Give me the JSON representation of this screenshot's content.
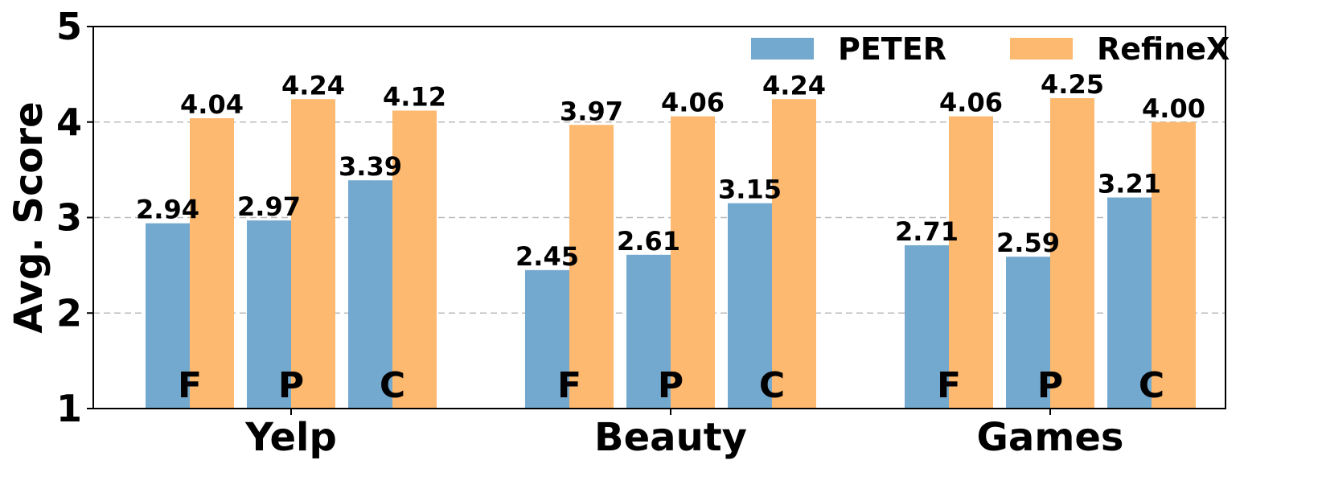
{
  "chart_data": {
    "type": "bar",
    "ylabel": "Avg. Score",
    "ylim": [
      1,
      5
    ],
    "yticks": [
      "1",
      "2",
      "3",
      "4",
      "5"
    ],
    "grid": true,
    "legend_position": "top-right",
    "groups": [
      {
        "name": "Yelp",
        "categories": [
          "F",
          "P",
          "C"
        ]
      },
      {
        "name": "Beauty",
        "categories": [
          "F",
          "P",
          "C"
        ]
      },
      {
        "name": "Games",
        "categories": [
          "F",
          "P",
          "C"
        ]
      }
    ],
    "series": [
      {
        "name": "PETER",
        "color": "#74a9cf",
        "values": [
          2.94,
          2.97,
          3.39,
          2.45,
          2.61,
          3.15,
          2.71,
          2.59,
          3.21
        ],
        "labels": [
          "2.94",
          "2.97",
          "3.39",
          "2.45",
          "2.61",
          "3.15",
          "2.71",
          "2.59",
          "3.21"
        ]
      },
      {
        "name": "RefineX",
        "color": "#fdb96f",
        "values": [
          4.04,
          4.24,
          4.12,
          3.97,
          4.06,
          4.24,
          4.06,
          4.25,
          4.0
        ],
        "labels": [
          "4.04",
          "4.24",
          "4.12",
          "3.97",
          "4.06",
          "4.24",
          "4.06",
          "4.25",
          "4.00"
        ]
      }
    ]
  }
}
